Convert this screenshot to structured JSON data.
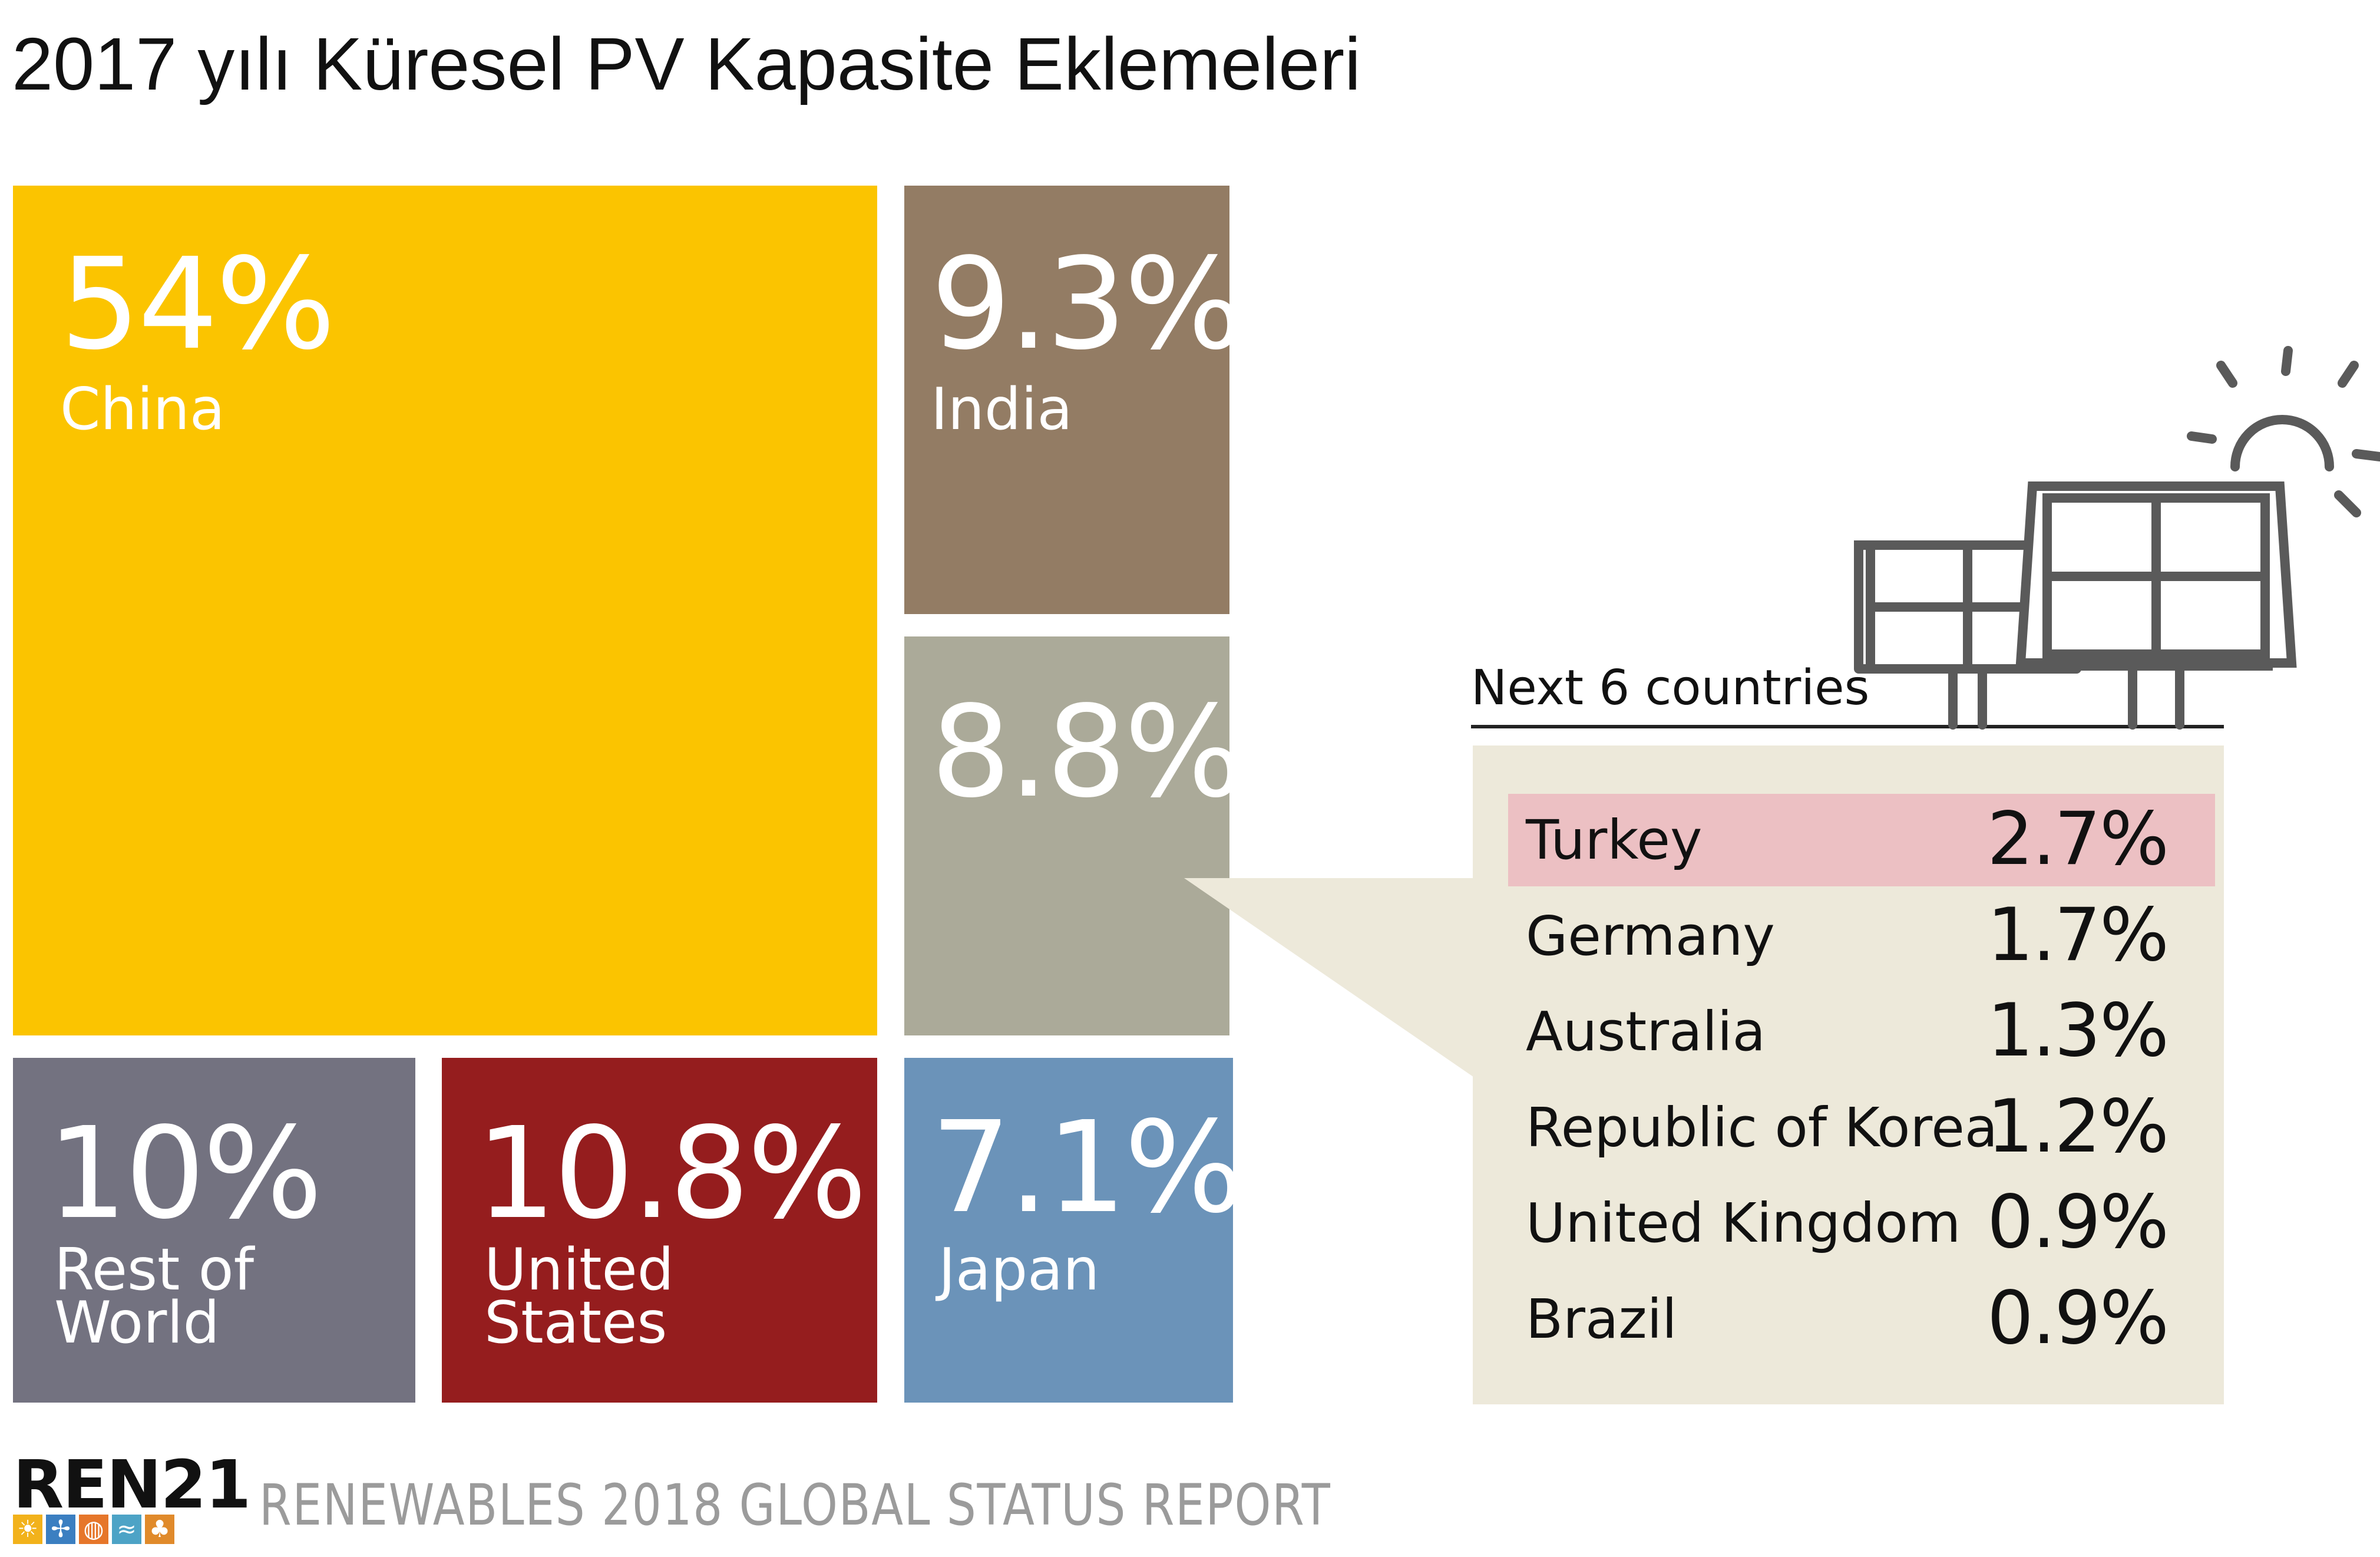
{
  "title": "2017 yılı Küresel PV Kapasite Eklemeleri",
  "colors": {
    "china": "#fbc400",
    "india": "#937c64",
    "next6": "#abaa99",
    "rest_of_world": "#737280",
    "united_states": "#951d1e",
    "japan": "#6b93b9",
    "panel": "#ede9da",
    "highlight": "#ecc0c3"
  },
  "chart_data": {
    "type": "treemap",
    "title": "2017 yılı Küresel PV Kapasite Eklemeleri",
    "unit": "%",
    "items": [
      {
        "name": "China",
        "value": 54,
        "label": "54%"
      },
      {
        "name": "India",
        "value": 9.3,
        "label": "9.3%"
      },
      {
        "name": "",
        "value": 8.8,
        "label": "8.8%"
      },
      {
        "name": "Rest of World",
        "value": 10,
        "label": "10%"
      },
      {
        "name": "United States",
        "value": 10.8,
        "label": "10.8%"
      },
      {
        "name": "Japan",
        "value": 7.1,
        "label": "7.1%"
      }
    ],
    "breakdown": {
      "title": "Next 6 countries",
      "items": [
        {
          "name": "Turkey",
          "value": 2.7,
          "label": "2.7%",
          "highlighted": true
        },
        {
          "name": "Germany",
          "value": 1.7,
          "label": "1.7%"
        },
        {
          "name": "Australia",
          "value": 1.3,
          "label": "1.3%"
        },
        {
          "name": "Republic of Korea",
          "value": 1.2,
          "label": "1.2%"
        },
        {
          "name": "United Kingdom",
          "value": 0.9,
          "label": "0.9%"
        },
        {
          "name": "Brazil",
          "value": 0.9,
          "label": "0.9%"
        }
      ]
    }
  },
  "tiles": {
    "china": {
      "pct": "54%",
      "label": "China"
    },
    "india": {
      "pct": "9.3%",
      "label": "India"
    },
    "next6": {
      "pct": "8.8%"
    },
    "row": {
      "pct": "10%",
      "label_1": "Rest of",
      "label_2": "World"
    },
    "us": {
      "pct": "10.8%",
      "label_1": "United",
      "label_2": "States"
    },
    "japan": {
      "pct": "7.1%",
      "label": "Japan"
    }
  },
  "next6": {
    "heading": "Next 6 countries",
    "rows": [
      {
        "name": "Turkey",
        "value": "2.7%"
      },
      {
        "name": "Germany",
        "value": "1.7%"
      },
      {
        "name": "Australia",
        "value": "1.3%"
      },
      {
        "name": "Republic of Korea",
        "value": "1.2%"
      },
      {
        "name": "United Kingdom",
        "value": "0.9%"
      },
      {
        "name": "Brazil",
        "value": "0.9%"
      }
    ]
  },
  "footer": {
    "logo": "REN21",
    "report": "RENEWABLES 2018 GLOBAL STATUS REPORT"
  },
  "icons": [
    "solar-panel-icon",
    "sun-icon",
    "ren21-logo"
  ]
}
